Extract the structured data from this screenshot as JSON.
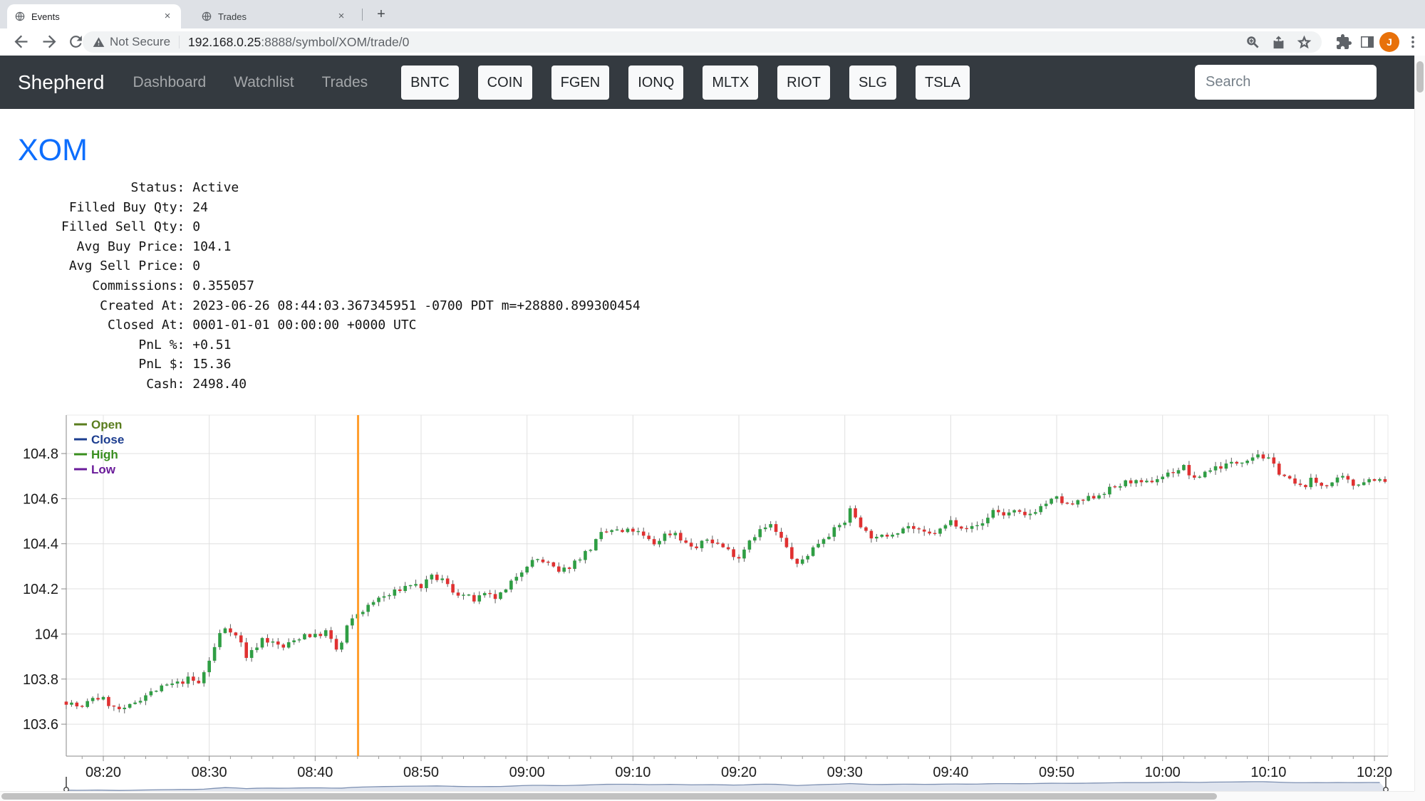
{
  "browser": {
    "tabs": [
      {
        "title": "Events"
      },
      {
        "title": "Trades"
      }
    ],
    "close_glyph": "×",
    "new_tab_glyph": "+",
    "address_bar": {
      "security_label": "Not Secure",
      "url_host": "192.168.0.25",
      "url_path": ":8888/symbol/XOM/trade/0"
    },
    "avatar_letter": "J"
  },
  "navbar": {
    "brand": "Shepherd",
    "links": [
      {
        "label": "Dashboard"
      },
      {
        "label": "Watchlist"
      },
      {
        "label": "Trades"
      }
    ],
    "tickers": [
      "BNTC",
      "COIN",
      "FGEN",
      "IONQ",
      "MLTX",
      "RIOT",
      "SLG",
      "TSLA"
    ],
    "search_placeholder": "Search"
  },
  "page": {
    "title": "XOM",
    "title_color": "#0d6efd",
    "status_label_width": 15,
    "status_lines": [
      {
        "label": "Status",
        "value": "Active"
      },
      {
        "label": "Filled Buy Qty",
        "value": "24"
      },
      {
        "label": "Filled Sell Qty",
        "value": "0"
      },
      {
        "label": "Avg Buy Price",
        "value": "104.1"
      },
      {
        "label": "Avg Sell Price",
        "value": "0"
      },
      {
        "label": "Commissions",
        "value": "0.355057"
      },
      {
        "label": "Created At",
        "value": "2023-06-26 08:44:03.367345951 -0700 PDT m=+28880.899300454"
      },
      {
        "label": "Closed At",
        "value": "0001-01-01 00:00:00 +0000 UTC"
      },
      {
        "label": "PnL %",
        "value": "+0.51"
      },
      {
        "label": "PnL $",
        "value": "15.36"
      },
      {
        "label": "Cash",
        "value": "2498.40"
      }
    ]
  },
  "chart_data": {
    "type": "candlestick",
    "symbol": "XOM",
    "bar_interval_seconds": 30,
    "grid": true,
    "legend_position": "top-left",
    "legend": [
      {
        "label": "Open",
        "color": "#5a7d1e"
      },
      {
        "label": "Close",
        "color": "#1c3d8f"
      },
      {
        "label": "High",
        "color": "#388e1e"
      },
      {
        "label": "Low",
        "color": "#6a1b9a"
      }
    ],
    "up_color": "#2f9e44",
    "down_color": "#e03131",
    "wick_color": "#5e5e5e",
    "x_axis": {
      "tick_labels": [
        "08:20",
        "08:30",
        "08:40",
        "08:50",
        "09:00",
        "09:10",
        "09:20",
        "09:30",
        "09:40",
        "09:50",
        "10:00",
        "10:10",
        "10:20"
      ],
      "tick_minutes": [
        500,
        510,
        520,
        530,
        540,
        550,
        560,
        570,
        580,
        590,
        600,
        610,
        620
      ],
      "minor_tick_every_min": 2
    },
    "y_axis": {
      "tick_labels": [
        "103.6",
        "103.8",
        "104",
        "104.2",
        "104.4",
        "104.6",
        "104.8"
      ],
      "tick_values": [
        103.6,
        103.8,
        104,
        104.2,
        104.4,
        104.6,
        104.8
      ],
      "min": 103.46,
      "max": 104.97
    },
    "time_range": {
      "start_minute": 496.5,
      "end_minute": 621,
      "start_label": "08:16",
      "end_label": "10:21"
    },
    "marker_line": {
      "time": "08:44",
      "minute": 524.05,
      "color": "#ff9e2e"
    },
    "price_path_minutes_price": [
      [
        496.5,
        103.7
      ],
      [
        498,
        103.67
      ],
      [
        499,
        103.72
      ],
      [
        500,
        103.71
      ],
      [
        501,
        103.67
      ],
      [
        502,
        103.66
      ],
      [
        503,
        103.7
      ],
      [
        504,
        103.73
      ],
      [
        505,
        103.75
      ],
      [
        506,
        103.77
      ],
      [
        507,
        103.78
      ],
      [
        508,
        103.8
      ],
      [
        509,
        103.78
      ],
      [
        510,
        103.88
      ],
      [
        511,
        104.0
      ],
      [
        511.5,
        104.03
      ],
      [
        512,
        104.02
      ],
      [
        513,
        103.96
      ],
      [
        513.5,
        103.9
      ],
      [
        514,
        103.92
      ],
      [
        515,
        103.98
      ],
      [
        516,
        103.96
      ],
      [
        517,
        103.94
      ],
      [
        518,
        103.97
      ],
      [
        519,
        104.0
      ],
      [
        520,
        103.99
      ],
      [
        521,
        104.01
      ],
      [
        522,
        103.93
      ],
      [
        522.5,
        103.96
      ],
      [
        523,
        104.03
      ],
      [
        524,
        104.09
      ],
      [
        525,
        104.12
      ],
      [
        526,
        104.16
      ],
      [
        527,
        104.17
      ],
      [
        528,
        104.2
      ],
      [
        529,
        104.22
      ],
      [
        530,
        104.21
      ],
      [
        531,
        104.25
      ],
      [
        532,
        104.24
      ],
      [
        533,
        104.19
      ],
      [
        534,
        104.17
      ],
      [
        535,
        104.15
      ],
      [
        536,
        104.17
      ],
      [
        537,
        104.16
      ],
      [
        538,
        104.19
      ],
      [
        539,
        104.26
      ],
      [
        540,
        104.31
      ],
      [
        541,
        104.33
      ],
      [
        542,
        104.31
      ],
      [
        543,
        104.27
      ],
      [
        544,
        104.3
      ],
      [
        545,
        104.34
      ],
      [
        546,
        104.38
      ],
      [
        547,
        104.44
      ],
      [
        548,
        104.46
      ],
      [
        549,
        104.45
      ],
      [
        550,
        104.46
      ],
      [
        551,
        104.43
      ],
      [
        552,
        104.4
      ],
      [
        553,
        104.44
      ],
      [
        554,
        104.45
      ],
      [
        555,
        104.4
      ],
      [
        556,
        104.38
      ],
      [
        557,
        104.42
      ],
      [
        558,
        104.4
      ],
      [
        559,
        104.37
      ],
      [
        560,
        104.34
      ],
      [
        561,
        104.42
      ],
      [
        562,
        104.46
      ],
      [
        563,
        104.48
      ],
      [
        564,
        104.42
      ],
      [
        565,
        104.34
      ],
      [
        565.5,
        104.3
      ],
      [
        566,
        104.33
      ],
      [
        567,
        104.38
      ],
      [
        568,
        104.43
      ],
      [
        569,
        104.46
      ],
      [
        570,
        104.5
      ],
      [
        570.5,
        104.55
      ],
      [
        571,
        104.52
      ],
      [
        572,
        104.45
      ],
      [
        573,
        104.42
      ],
      [
        574,
        104.44
      ],
      [
        575,
        104.46
      ],
      [
        576,
        104.48
      ],
      [
        577,
        104.45
      ],
      [
        578,
        104.44
      ],
      [
        579,
        104.46
      ],
      [
        580,
        104.5
      ],
      [
        581,
        104.48
      ],
      [
        582,
        104.47
      ],
      [
        583,
        104.49
      ],
      [
        584,
        104.55
      ],
      [
        585,
        104.53
      ],
      [
        586,
        104.54
      ],
      [
        587,
        104.52
      ],
      [
        588,
        104.55
      ],
      [
        589,
        104.58
      ],
      [
        590,
        104.6
      ],
      [
        591,
        104.57
      ],
      [
        592,
        104.58
      ],
      [
        593,
        104.6
      ],
      [
        594,
        104.62
      ],
      [
        595,
        104.64
      ],
      [
        596,
        104.66
      ],
      [
        597,
        104.68
      ],
      [
        598,
        104.66
      ],
      [
        599,
        104.68
      ],
      [
        600,
        104.7
      ],
      [
        601,
        104.72
      ],
      [
        602,
        104.74
      ],
      [
        603,
        104.68
      ],
      [
        604,
        104.72
      ],
      [
        605,
        104.74
      ],
      [
        606,
        104.75
      ],
      [
        607,
        104.76
      ],
      [
        608,
        104.78
      ],
      [
        609,
        104.8
      ],
      [
        610,
        104.77
      ],
      [
        611,
        104.72
      ],
      [
        612,
        104.68
      ],
      [
        613,
        104.65
      ],
      [
        614,
        104.68
      ],
      [
        615,
        104.66
      ],
      [
        616,
        104.67
      ],
      [
        617,
        104.69
      ],
      [
        618,
        104.66
      ],
      [
        619,
        104.68
      ],
      [
        620,
        104.69
      ],
      [
        621,
        104.67
      ]
    ],
    "navigator": {
      "line_color": "#7d90b2",
      "fill_color": "rgba(150,166,199,0.30)"
    }
  }
}
